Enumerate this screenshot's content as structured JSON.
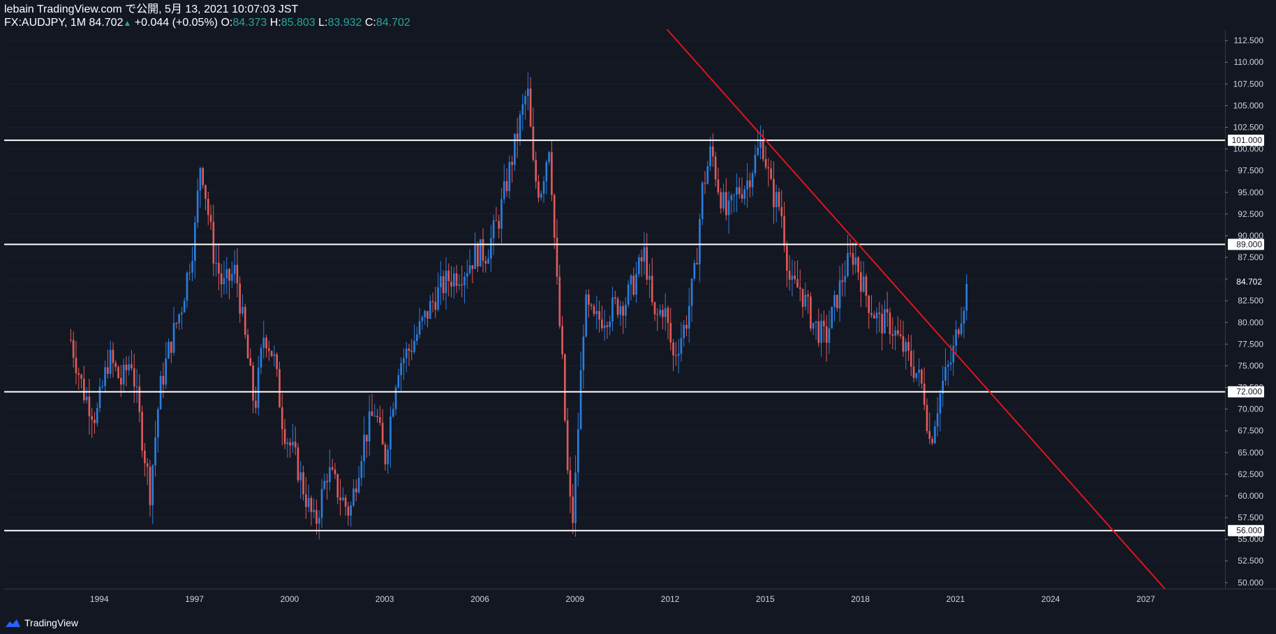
{
  "header": {
    "publisher": "lebain TradingView.com で公開, 5月 13, 2021 10:07:03 JST",
    "symbol": "FX:AUDJPY, 1M",
    "last": "84.702",
    "change": "+0.044 (+0.05%)",
    "open_label": "O:",
    "open": "84.373",
    "high_label": "H:",
    "high": "85.803",
    "low_label": "L:",
    "low": "83.932",
    "close_label": "C:",
    "close": "84.702"
  },
  "footer": {
    "brand": "TradingView",
    "logo_icon": "tradingview-cloud-icon"
  },
  "colors": {
    "background": "#131722",
    "up": "#2a7ede",
    "down": "#e05a5a",
    "trendline": "#e0151a",
    "level": "#ffffff"
  },
  "chart_data": {
    "type": "candlestick",
    "title": "",
    "xlabel": "",
    "ylabel": "",
    "timeframe": "1M",
    "xlim": [
      1991.0,
      2029.5
    ],
    "ylim": [
      49.3,
      113.8
    ],
    "x_ticks": [
      "1994",
      "1997",
      "2000",
      "2003",
      "2006",
      "2009",
      "2012",
      "2015",
      "2018",
      "2021",
      "2024",
      "2027"
    ],
    "y_ticks": [
      "50.000",
      "52.500",
      "55.000",
      "57.500",
      "60.000",
      "62.500",
      "65.000",
      "67.500",
      "70.000",
      "72.500",
      "75.000",
      "77.500",
      "80.000",
      "82.500",
      "85.000",
      "87.500",
      "90.000",
      "92.500",
      "95.000",
      "97.500",
      "100.000",
      "102.500",
      "105.000",
      "107.500",
      "110.000",
      "112.500"
    ],
    "horizontal_levels": [
      {
        "value": 101.0,
        "label": "101.000"
      },
      {
        "value": 89.0,
        "label": "89.000"
      },
      {
        "value": 72.0,
        "label": "72.000"
      },
      {
        "value": 56.0,
        "label": "56.000"
      }
    ],
    "current_price": {
      "value": 84.702,
      "label": "84.702"
    },
    "trendline": {
      "x1": 2011.9,
      "y1": 113.8,
      "x2": 2027.6,
      "y2": 49.3,
      "color": "#e0151a"
    },
    "close_series": {
      "x": [
        1993.1,
        1993.5,
        1993.9,
        1994.3,
        1994.7,
        1995.0,
        1995.3,
        1995.6,
        1995.9,
        1996.2,
        1996.6,
        1997.0,
        1997.2,
        1997.6,
        1997.9,
        1998.3,
        1998.6,
        1998.9,
        1999.2,
        1999.5,
        1999.8,
        2000.2,
        2000.5,
        2000.8,
        2001.2,
        2001.6,
        2001.9,
        2002.3,
        2002.7,
        2003.0,
        2003.4,
        2003.8,
        2004.2,
        2004.6,
        2005.0,
        2005.5,
        2005.9,
        2006.2,
        2006.6,
        2006.9,
        2007.2,
        2007.5,
        2007.7,
        2007.9,
        2008.2,
        2008.4,
        2008.6,
        2008.8,
        2008.95,
        2009.1,
        2009.3,
        2009.6,
        2010.0,
        2010.3,
        2010.6,
        2010.9,
        2011.2,
        2011.5,
        2011.8,
        2012.1,
        2012.5,
        2012.8,
        2013.0,
        2013.3,
        2013.5,
        2013.8,
        2014.1,
        2014.4,
        2014.7,
        2014.9,
        2015.2,
        2015.5,
        2015.8,
        2016.1,
        2016.5,
        2016.9,
        2017.2,
        2017.5,
        2017.8,
        2018.1,
        2018.3,
        2018.6,
        2018.9,
        2019.2,
        2019.5,
        2019.8,
        2020.0,
        2020.2,
        2020.4,
        2020.6,
        2020.9,
        2021.1,
        2021.4
      ],
      "y": [
        78,
        72,
        69,
        76,
        73,
        76,
        68,
        60.5,
        72,
        77,
        82,
        90,
        99,
        88,
        84,
        86,
        78,
        70,
        79,
        76,
        68,
        64,
        60,
        56.5,
        63,
        60,
        58,
        66,
        70,
        64,
        75,
        77,
        80,
        83,
        85,
        86,
        88,
        88,
        92,
        97,
        102,
        107,
        97,
        95,
        101,
        86,
        75,
        60,
        57,
        68,
        82,
        80,
        81,
        82,
        82.5,
        85,
        88,
        80,
        82,
        76,
        80,
        86,
        95,
        100,
        96,
        92,
        95,
        96,
        99,
        101,
        95,
        93,
        84,
        84,
        80,
        78,
        82,
        86,
        88,
        84,
        82,
        80,
        80,
        78,
        76,
        74,
        72,
        66,
        70,
        73,
        76,
        80,
        84.7
      ]
    }
  }
}
